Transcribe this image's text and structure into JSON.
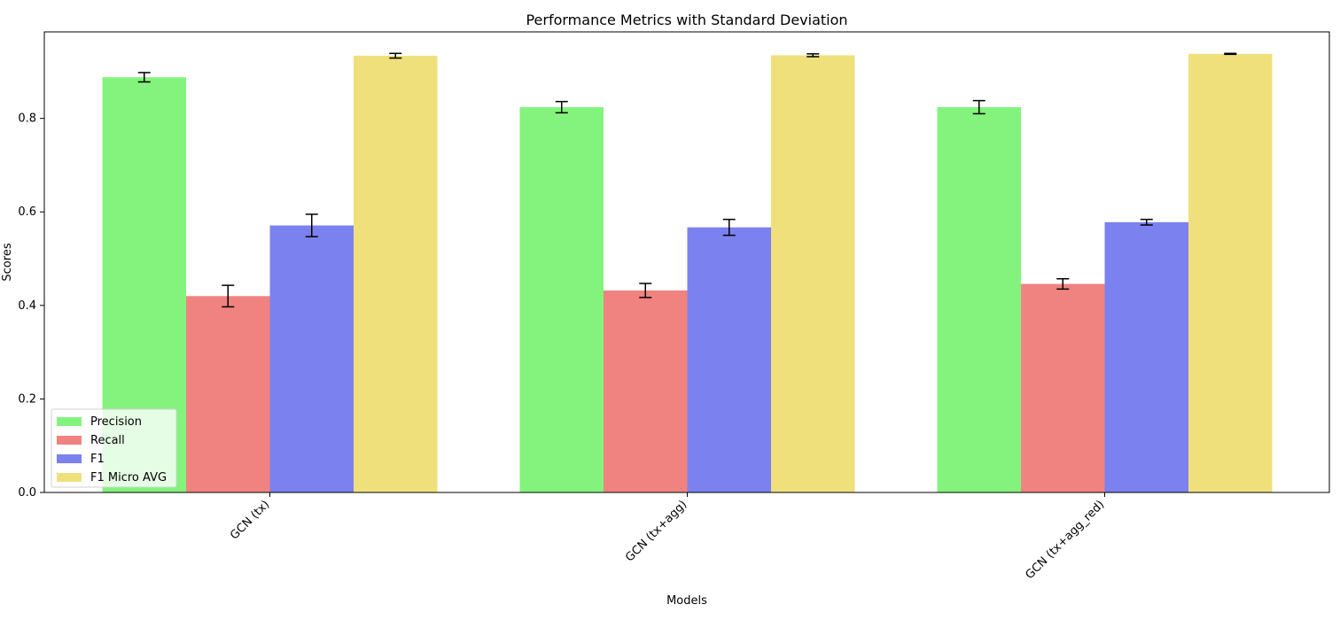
{
  "chart_data": {
    "type": "bar",
    "title": "Performance Metrics with Standard Deviation",
    "xlabel": "Models",
    "ylabel": "Scores",
    "categories": [
      "GCN (tx)",
      "GCN (tx+agg)",
      "GCN (tx+agg_red)"
    ],
    "series": [
      {
        "name": "Precision",
        "color": "#84f37d",
        "values": [
          0.888,
          0.824,
          0.824
        ],
        "errors": [
          0.01,
          0.012,
          0.014
        ]
      },
      {
        "name": "Recall",
        "color": "#f08380",
        "values": [
          0.42,
          0.432,
          0.446
        ],
        "errors": [
          0.023,
          0.015,
          0.011
        ]
      },
      {
        "name": "F1",
        "color": "#7c81f0",
        "values": [
          0.571,
          0.567,
          0.578
        ],
        "errors": [
          0.024,
          0.017,
          0.006
        ]
      },
      {
        "name": "F1 Micro AVG",
        "color": "#efe07c",
        "values": [
          0.934,
          0.935,
          0.938
        ],
        "errors": [
          0.005,
          0.003,
          0.001
        ]
      }
    ],
    "ylim": [
      0,
      0.985
    ],
    "yticks": [
      0.0,
      0.2,
      0.4,
      0.6,
      0.8
    ],
    "ytick_labels": [
      "0.0",
      "0.2",
      "0.4",
      "0.6",
      "0.8"
    ],
    "grid": false,
    "legend_position": "lower-left",
    "xtick_rotation": "45"
  }
}
